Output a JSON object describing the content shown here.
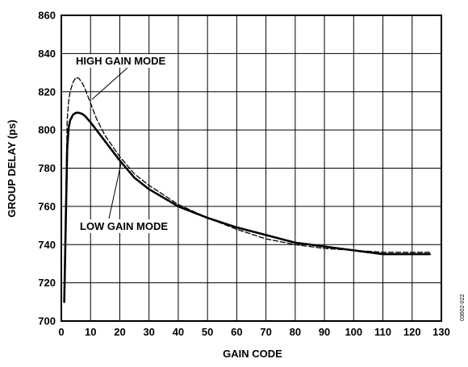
{
  "chart_data": {
    "type": "line",
    "title": "",
    "xlabel": "GAIN CODE",
    "ylabel": "GROUP DELAY (ps)",
    "xlim": [
      0,
      130
    ],
    "ylim": [
      700,
      860
    ],
    "xticks": [
      0,
      10,
      20,
      30,
      40,
      50,
      60,
      70,
      80,
      90,
      100,
      110,
      120,
      130
    ],
    "yticks": [
      700,
      720,
      740,
      760,
      780,
      800,
      820,
      840,
      860
    ],
    "grid": true,
    "series": [
      {
        "name": "HIGH GAIN MODE",
        "style": "dashed",
        "color": "#000000",
        "x": [
          1,
          1.5,
          2,
          2.5,
          3,
          4,
          5,
          6,
          7,
          8,
          10,
          12,
          15,
          20,
          25,
          30,
          40,
          50,
          60,
          70,
          80,
          90,
          100,
          110,
          120,
          126
        ],
        "y": [
          711,
          760,
          805,
          815,
          820,
          825,
          827.5,
          827,
          825,
          822,
          814,
          806,
          797,
          786,
          777,
          771,
          761,
          754,
          748,
          743,
          740,
          738,
          737,
          736,
          736,
          736
        ]
      },
      {
        "name": "LOW GAIN MODE",
        "style": "solid",
        "color": "#000000",
        "x": [
          1,
          1.5,
          2,
          2.5,
          3,
          4,
          5,
          6,
          7,
          8,
          10,
          12,
          15,
          20,
          25,
          30,
          40,
          50,
          60,
          70,
          80,
          90,
          100,
          110,
          120,
          126
        ],
        "y": [
          710,
          750,
          790,
          801,
          805,
          808,
          809,
          809,
          808.5,
          807.5,
          804,
          800,
          794,
          784,
          775,
          769,
          760,
          754,
          749,
          745,
          741,
          739,
          737,
          735,
          735,
          735
        ]
      }
    ],
    "annotations": [
      {
        "text": "HIGH GAIN MODE",
        "target_series": 0
      },
      {
        "text": "LOW GAIN MODE",
        "target_series": 1
      }
    ],
    "side_note": "03602-022"
  }
}
